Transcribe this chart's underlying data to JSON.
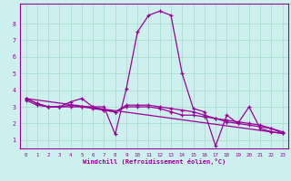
{
  "xlabel": "Windchill (Refroidissement éolien,°C)",
  "background_color": "#cdf0ee",
  "grid_color": "#aaddcc",
  "line_color": "#990099",
  "xlim": [
    -0.5,
    23.5
  ],
  "ylim": [
    0.5,
    9.2
  ],
  "xticks": [
    0,
    1,
    2,
    3,
    4,
    5,
    6,
    7,
    8,
    9,
    10,
    11,
    12,
    13,
    14,
    15,
    16,
    17,
    18,
    19,
    20,
    21,
    22,
    23
  ],
  "yticks": [
    1,
    2,
    3,
    4,
    5,
    6,
    7,
    8
  ],
  "line1_x": [
    0,
    1,
    2,
    3,
    4,
    5,
    6,
    7,
    8,
    9,
    10,
    11,
    12,
    13,
    14,
    15,
    16,
    17,
    18,
    19,
    20,
    21,
    22,
    23
  ],
  "line1_y": [
    3.5,
    3.2,
    3.0,
    3.0,
    3.3,
    3.5,
    3.0,
    3.0,
    1.35,
    4.1,
    7.5,
    8.5,
    8.75,
    8.5,
    5.0,
    2.9,
    2.7,
    0.65,
    2.5,
    2.0,
    3.0,
    1.7,
    1.5,
    1.4
  ],
  "line2_x": [
    0,
    1,
    2,
    3,
    4,
    5,
    6,
    7,
    8,
    9,
    10,
    11,
    12,
    13,
    14,
    15,
    16,
    17,
    18,
    19,
    20,
    21,
    22,
    23
  ],
  "line2_y": [
    3.5,
    3.2,
    3.0,
    3.0,
    3.0,
    3.0,
    3.0,
    2.8,
    2.7,
    3.0,
    3.0,
    3.0,
    2.9,
    2.7,
    2.5,
    2.5,
    2.4,
    2.3,
    2.2,
    2.1,
    2.0,
    1.9,
    1.7,
    1.5
  ],
  "line3_x": [
    0,
    1,
    2,
    3,
    4,
    5,
    6,
    7,
    8,
    9,
    10,
    11,
    12,
    13,
    14,
    15,
    16,
    17,
    18,
    19,
    20,
    21,
    22,
    23
  ],
  "line3_y": [
    3.4,
    3.1,
    3.0,
    3.0,
    3.1,
    3.0,
    2.9,
    2.8,
    2.7,
    3.1,
    3.1,
    3.1,
    3.0,
    2.9,
    2.8,
    2.7,
    2.5,
    2.3,
    2.1,
    2.0,
    1.9,
    1.8,
    1.7,
    1.4
  ],
  "line4_x": [
    0,
    23
  ],
  "line4_y": [
    3.5,
    1.4
  ]
}
